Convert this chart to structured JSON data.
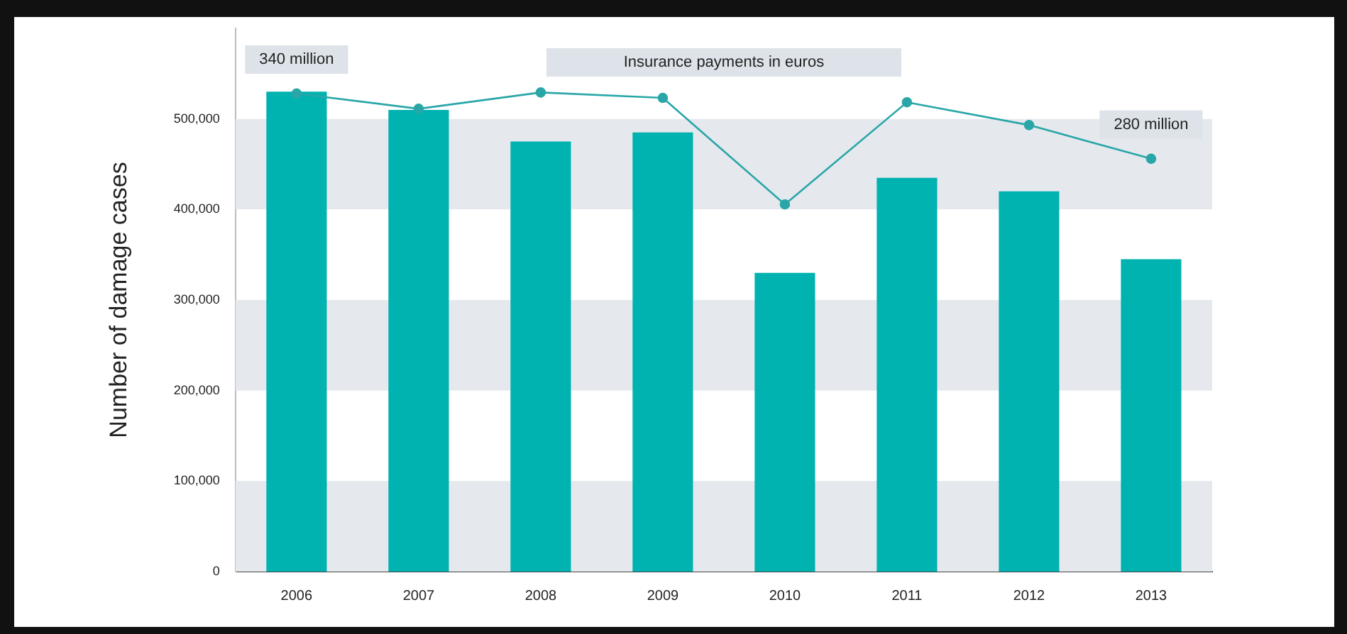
{
  "chart_data": {
    "type": "bar",
    "ylabel": "Number of damage cases",
    "categories": [
      "2006",
      "2007",
      "2008",
      "2009",
      "2010",
      "2011",
      "2012",
      "2013"
    ],
    "series": [
      {
        "color": "#00b2b0",
        "values": [
          530000,
          510000,
          475000,
          485000,
          330000,
          435000,
          420000,
          345000
        ]
      },
      {
        "type": "line",
        "name": "Insurance payments in euros",
        "axis": "y2",
        "color": "#2aa6a8",
        "marker": "circle",
        "values": [
          340,
          326,
          341,
          336,
          238,
          332,
          311,
          280
        ],
        "value_labels": [
          "340 million",
          null,
          null,
          null,
          null,
          null,
          null,
          "280 million"
        ]
      }
    ],
    "ylim": [
      0,
      600000
    ],
    "yticks": [
      0,
      {
        "value": 100000,
        "label": "100,000"
      },
      {
        "value": 200000,
        "label": "200,000"
      },
      {
        "value": 300000,
        "label": "300,000"
      },
      {
        "value": 400000,
        "label": "400,000"
      },
      {
        "value": 500000,
        "label": "500,000"
      }
    ],
    "bands": [
      {
        "axis": "y",
        "from": 0,
        "to": 100000,
        "color": "#e5e9ed"
      },
      {
        "axis": "y",
        "from": 200000,
        "to": 300000,
        "color": "#e5e9ed"
      },
      {
        "axis": "y",
        "from": 400000,
        "to": 500000,
        "color": "#e5e9ed"
      }
    ],
    "legend": false
  }
}
